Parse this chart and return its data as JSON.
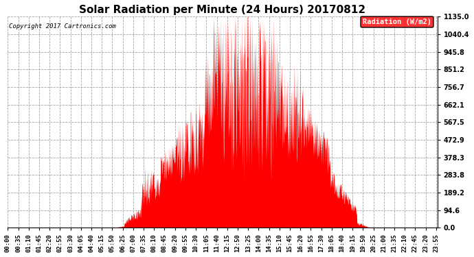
{
  "title": "Solar Radiation per Minute (24 Hours) 20170812",
  "copyright_text": "Copyright 2017 Cartronics.com",
  "legend_label": "Radiation (W/m2)",
  "ylim": [
    0.0,
    1135.0
  ],
  "yticks": [
    0.0,
    94.6,
    189.2,
    283.8,
    378.3,
    472.9,
    567.5,
    662.1,
    756.7,
    851.2,
    945.8,
    1040.4,
    1135.0
  ],
  "fill_color": "#FF0000",
  "line_color": "#FF0000",
  "background_color": "#FFFFFF",
  "grid_color": "#999999",
  "title_fontsize": 11,
  "tick_fontsize": 6.5,
  "total_minutes": 1440,
  "x_tick_step": 35
}
